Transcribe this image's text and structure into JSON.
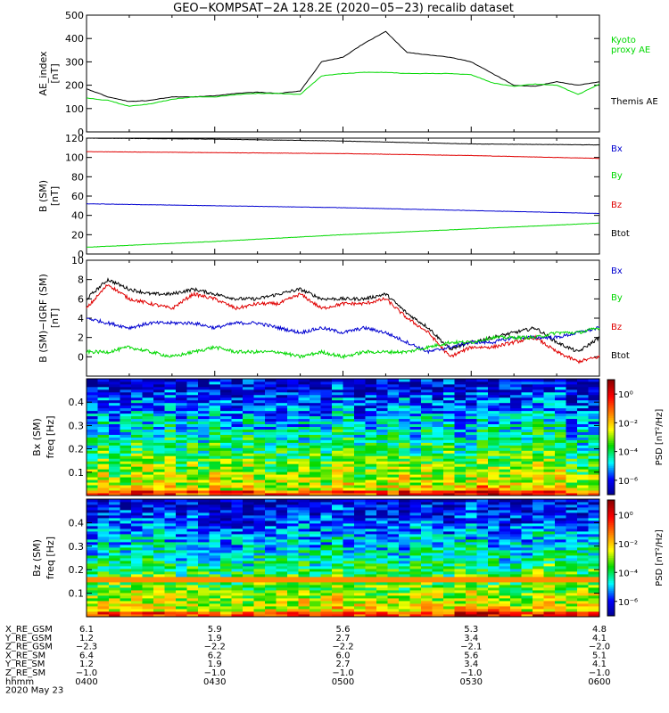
{
  "title": "GEO−KOMPSAT−2A 128.2E (2020−05−23) recalib dataset",
  "colors": {
    "black": "#000000",
    "green": "#00d800",
    "red": "#e00000",
    "blue": "#0000d0"
  },
  "x_ticks": [
    "0400",
    "0430",
    "0500",
    "0530",
    "0600"
  ],
  "chart_data": [
    {
      "type": "line",
      "ylabel": "AE_index\n[nT]",
      "ylim": [
        0,
        500
      ],
      "yticks": [
        0,
        100,
        200,
        300,
        400,
        500
      ],
      "x": [
        "04:00",
        "04:05",
        "04:10",
        "04:15",
        "04:20",
        "04:25",
        "04:30",
        "04:35",
        "04:40",
        "04:45",
        "04:50",
        "04:55",
        "05:00",
        "05:05",
        "05:10",
        "05:15",
        "05:20",
        "05:25",
        "05:30",
        "05:35",
        "05:40",
        "05:45",
        "05:50",
        "05:55",
        "06:00"
      ],
      "series": [
        {
          "name": "Themis AE",
          "color": "black",
          "values": [
            185,
            150,
            130,
            135,
            150,
            150,
            155,
            165,
            170,
            165,
            175,
            300,
            320,
            380,
            430,
            340,
            330,
            320,
            300,
            250,
            200,
            195,
            215,
            200,
            215
          ]
        },
        {
          "name": "Kyoto proxy AE",
          "color": "green",
          "values": [
            145,
            135,
            110,
            120,
            140,
            150,
            150,
            160,
            165,
            165,
            160,
            240,
            250,
            255,
            255,
            250,
            250,
            250,
            245,
            210,
            195,
            205,
            200,
            160,
            205
          ]
        }
      ],
      "legend": [
        {
          "label": "Kyoto\nproxy AE",
          "color": "green"
        },
        {
          "label": "Themis AE",
          "color": "black"
        }
      ]
    },
    {
      "type": "line",
      "ylabel": "B (SM)\n[nT]",
      "ylim": [
        0,
        120
      ],
      "yticks": [
        0,
        20,
        40,
        60,
        80,
        100,
        120
      ],
      "x": [
        "04:00",
        "04:30",
        "05:00",
        "05:30",
        "06:00"
      ],
      "series": [
        {
          "name": "Btot",
          "color": "black",
          "values": [
            120,
            119,
            117,
            114,
            113
          ]
        },
        {
          "name": "Bz",
          "color": "red",
          "values": [
            106,
            105,
            104,
            102,
            99
          ]
        },
        {
          "name": "Bx",
          "color": "blue",
          "values": [
            52,
            50,
            48,
            45,
            42
          ]
        },
        {
          "name": "By",
          "color": "green",
          "values": [
            7,
            13,
            20,
            26,
            32
          ]
        }
      ],
      "legend": [
        {
          "label": "Bx",
          "color": "blue"
        },
        {
          "label": "By",
          "color": "green"
        },
        {
          "label": "Bz",
          "color": "red"
        },
        {
          "label": "Btot",
          "color": "black"
        }
      ]
    },
    {
      "type": "line",
      "ylabel": "B (SM)−IGRF (SM)\n[nT]",
      "ylim": [
        -2,
        10
      ],
      "yticks": [
        0,
        2,
        4,
        6,
        8,
        10
      ],
      "x": [
        "04:00",
        "04:05",
        "04:10",
        "04:15",
        "04:20",
        "04:25",
        "04:30",
        "04:35",
        "04:40",
        "04:45",
        "04:50",
        "04:55",
        "05:00",
        "05:05",
        "05:10",
        "05:15",
        "05:20",
        "05:25",
        "05:30",
        "05:35",
        "05:40",
        "05:45",
        "05:50",
        "05:55",
        "06:00"
      ],
      "series": [
        {
          "name": "Btot",
          "color": "black",
          "values": [
            6.0,
            8.0,
            7.0,
            6.5,
            6.5,
            7.0,
            6.5,
            6.0,
            6.0,
            6.5,
            7.0,
            6.0,
            6.0,
            6.0,
            6.5,
            4.5,
            3.0,
            0.8,
            1.5,
            2.0,
            2.5,
            3.0,
            1.5,
            0.5,
            2.0
          ]
        },
        {
          "name": "Bz",
          "color": "red",
          "values": [
            5.0,
            7.5,
            6.0,
            5.5,
            5.0,
            6.5,
            6.0,
            5.0,
            5.5,
            5.5,
            6.5,
            5.0,
            5.5,
            5.5,
            6.0,
            4.0,
            2.5,
            0.0,
            1.0,
            1.0,
            1.5,
            2.0,
            0.5,
            -0.5,
            0.0
          ]
        },
        {
          "name": "Bx",
          "color": "blue",
          "values": [
            4.0,
            3.5,
            3.0,
            3.5,
            3.5,
            3.5,
            3.0,
            3.5,
            3.5,
            3.0,
            2.5,
            3.0,
            2.5,
            3.0,
            2.5,
            1.5,
            0.5,
            1.0,
            1.5,
            1.5,
            2.0,
            2.0,
            2.0,
            2.5,
            3.0
          ]
        },
        {
          "name": "By",
          "color": "green",
          "values": [
            0.5,
            0.5,
            1.0,
            0.5,
            0.0,
            0.5,
            1.0,
            0.5,
            0.5,
            0.5,
            0.0,
            0.5,
            0.0,
            0.5,
            0.5,
            0.5,
            1.0,
            1.5,
            1.5,
            2.0,
            2.0,
            2.0,
            2.5,
            2.5,
            3.0
          ]
        }
      ],
      "legend": [
        {
          "label": "Bx",
          "color": "blue"
        },
        {
          "label": "By",
          "color": "green"
        },
        {
          "label": "Bz",
          "color": "red"
        },
        {
          "label": "Btot",
          "color": "black"
        }
      ]
    },
    {
      "type": "heatmap",
      "ylabel": "Bx (SM)",
      "ylabel2": "freq [Hz]",
      "ylim": [
        0,
        0.5
      ],
      "yticks": [
        0.1,
        0.2,
        0.3,
        0.4
      ],
      "colorbar": {
        "label": "PSD [nT²/Hz]",
        "ticks": [
          "10⁰",
          "10⁻²",
          "10⁻⁴",
          "10⁻⁶"
        ],
        "range": [
          -7,
          1
        ]
      }
    },
    {
      "type": "heatmap",
      "ylabel": "Bz (SM)",
      "ylabel2": "freq [Hz]",
      "ylim": [
        0,
        0.5
      ],
      "yticks": [
        0.1,
        0.2,
        0.3,
        0.4
      ],
      "colorbar": {
        "label": "PSD [nT²/Hz]",
        "ticks": [
          "10⁰",
          "10⁻²",
          "10⁻⁴",
          "10⁻⁶"
        ],
        "range": [
          -7,
          1
        ]
      }
    }
  ],
  "ephemeris": {
    "labels": [
      "X_RE_GSM",
      "Y_RE_GSM",
      "Z_RE_GSM",
      "X_RE_SM",
      "Y_RE_SM",
      "Z_RE_SM",
      "hhmm"
    ],
    "columns": [
      [
        "6.1",
        "1.2",
        "−2.3",
        "6.4",
        "1.2",
        "−1.0",
        "0400"
      ],
      [
        "5.9",
        "1.9",
        "−2.2",
        "6.2",
        "1.9",
        "−1.0",
        "0430"
      ],
      [
        "5.6",
        "2.7",
        "−2.2",
        "6.0",
        "2.7",
        "−1.0",
        "0500"
      ],
      [
        "5.3",
        "3.4",
        "−2.1",
        "5.6",
        "3.4",
        "−1.0",
        "0530"
      ],
      [
        "4.8",
        "4.1",
        "−2.0",
        "5.1",
        "4.1",
        "−1.0",
        "0600"
      ]
    ],
    "date": "2020 May 23"
  }
}
